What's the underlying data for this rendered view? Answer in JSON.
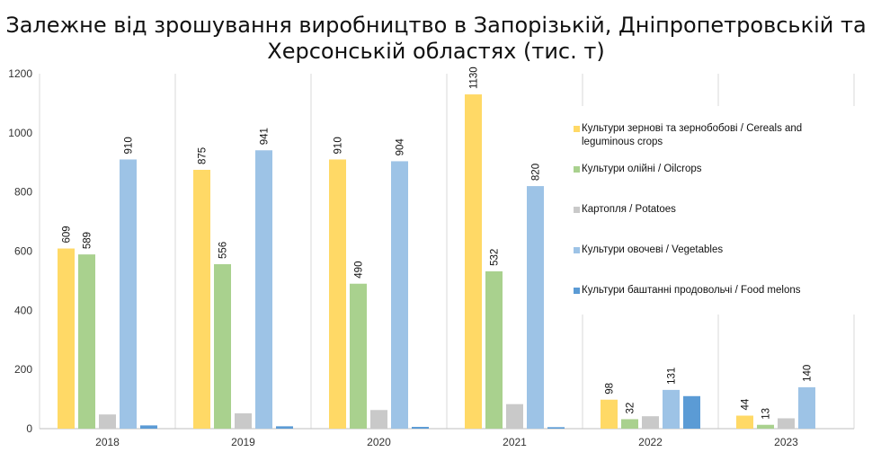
{
  "chart_data": {
    "type": "bar",
    "title_lines": [
      "Залежне від зрошування виробництво в Запорізькій, Дніпропетровській та",
      "Херсонській областях (тис. т)"
    ],
    "categories": [
      "2018",
      "2019",
      "2020",
      "2021",
      "2022",
      "2023"
    ],
    "ylim": [
      0,
      1200
    ],
    "yticks": [
      0,
      200,
      400,
      600,
      800,
      1000,
      1200
    ],
    "grid": "vertical separators between categories",
    "legend_position": "right",
    "series": [
      {
        "name": "Культури зернові та зернобобові / Cereals and leguminous crops",
        "color": "#FFD966",
        "values": [
          609,
          875,
          910,
          1130,
          98,
          44
        ],
        "labels": [
          "609",
          "875",
          "910",
          "1130",
          "98",
          "44"
        ]
      },
      {
        "name": "Культури олійні / Oilcrops",
        "color": "#A9D18E",
        "values": [
          589,
          556,
          490,
          532,
          32,
          13
        ],
        "labels": [
          "589",
          "556",
          "490",
          "532",
          "32",
          "13"
        ]
      },
      {
        "name": "Картопля / Potatoes",
        "color": "#C9C9C9",
        "values": [
          48,
          52,
          63,
          83,
          42,
          35
        ],
        "labels": [
          "",
          "",
          "",
          "",
          "",
          ""
        ]
      },
      {
        "name": "Культури овочеві / Vegetables",
        "color": "#9DC3E6",
        "values": [
          910,
          941,
          904,
          820,
          131,
          140
        ],
        "labels": [
          "910",
          "941",
          "904",
          "820",
          "131",
          "140"
        ]
      },
      {
        "name": "Культури баштанні продовольчі / Food melons",
        "color": "#5B9BD5",
        "values": [
          11,
          8,
          6,
          5,
          110,
          0
        ],
        "labels": [
          "",
          "",
          "",
          "",
          "",
          ""
        ]
      }
    ]
  }
}
